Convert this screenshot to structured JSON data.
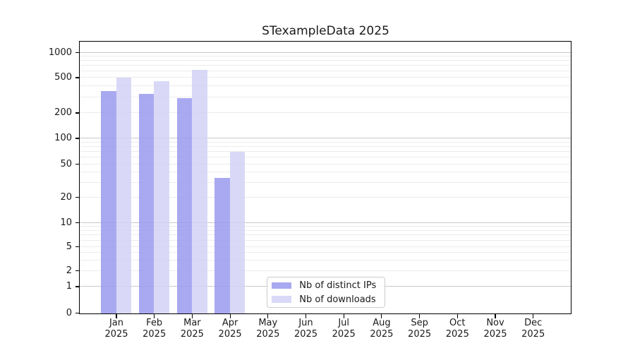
{
  "title": "STexampleData 2025",
  "y_axis": {
    "ticks": [
      {
        "label": "0",
        "value": 0
      },
      {
        "label": "1",
        "value": 1
      },
      {
        "label": "2",
        "value": 2
      },
      {
        "label": "5",
        "value": 5
      },
      {
        "label": "10",
        "value": 10
      },
      {
        "label": "20",
        "value": 20
      },
      {
        "label": "50",
        "value": 50
      },
      {
        "label": "100",
        "value": 100
      },
      {
        "label": "200",
        "value": 200
      },
      {
        "label": "500",
        "value": 500
      },
      {
        "label": "1000",
        "value": 1000
      }
    ]
  },
  "x_axis": {
    "year": "2025",
    "months": [
      "Jan",
      "Feb",
      "Mar",
      "Apr",
      "May",
      "Jun",
      "Jul",
      "Aug",
      "Sep",
      "Oct",
      "Nov",
      "Dec"
    ]
  },
  "legend": {
    "items": [
      {
        "label": "Nb of distinct IPs",
        "color": "#a9a9f0"
      },
      {
        "label": "Nb of downloads",
        "color": "#d9d9f7"
      }
    ]
  },
  "chart_data": {
    "type": "bar",
    "title": "STexampleData 2025",
    "categories": [
      "Jan 2025",
      "Feb 2025",
      "Mar 2025",
      "Apr 2025",
      "May 2025",
      "Jun 2025",
      "Jul 2025",
      "Aug 2025",
      "Sep 2025",
      "Oct 2025",
      "Nov 2025",
      "Dec 2025"
    ],
    "series": [
      {
        "name": "Nb of distinct IPs",
        "color": "#a9a9f0",
        "values": [
          350,
          325,
          295,
          34,
          0,
          0,
          0,
          0,
          0,
          0,
          0,
          0
        ]
      },
      {
        "name": "Nb of downloads",
        "color": "#d9d9f7",
        "values": [
          500,
          455,
          620,
          69,
          0,
          0,
          0,
          0,
          0,
          0,
          0,
          0
        ]
      }
    ],
    "xlabel": "",
    "ylabel": "",
    "ylim": [
      0,
      1000
    ],
    "yscale": "log-like with labeled ticks [0,1,2,5,10,20,50,100,200,500,1000]",
    "grid": true,
    "legend_position": "lower-center inside plot"
  }
}
